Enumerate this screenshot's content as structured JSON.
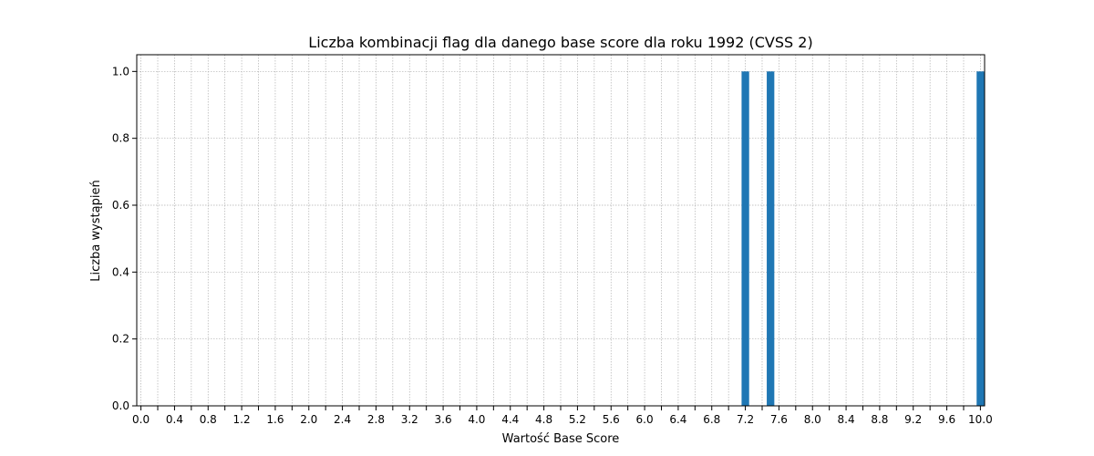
{
  "chart_data": {
    "type": "bar",
    "title": "Liczba kombinacji flag dla danego base score dla roku 1992 (CVSS 2)",
    "xlabel": "Wartość Base Score",
    "ylabel": "Liczba wystąpień",
    "xlim": [
      -0.05,
      10.05
    ],
    "ylim": [
      0,
      1.05
    ],
    "bar_width": 0.09,
    "x": [
      7.2,
      7.5,
      10.0
    ],
    "values": [
      1,
      1,
      1
    ],
    "xticks": [
      "0.0",
      "0.4",
      "0.8",
      "1.2",
      "1.6",
      "2.0",
      "2.4",
      "2.8",
      "3.2",
      "3.6",
      "4.0",
      "4.4",
      "4.8",
      "5.2",
      "5.6",
      "6.0",
      "6.4",
      "6.8",
      "7.2",
      "7.6",
      "8.0",
      "8.4",
      "8.8",
      "9.2",
      "9.6",
      "10.0"
    ],
    "yticks": [
      "0.0",
      "0.2",
      "0.4",
      "0.6",
      "0.8",
      "1.0"
    ],
    "minor_x_grid_step": 0.2,
    "grid": true,
    "bar_color": "#1f77b4",
    "grid_color": "#b0b0b0"
  }
}
